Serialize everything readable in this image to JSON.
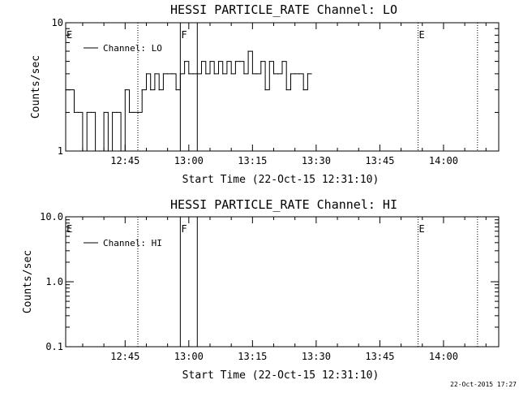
{
  "footer_timestamp": "22-Oct-2015 17:27",
  "colors": {
    "background": "#ffffff",
    "foreground": "#000000"
  },
  "chart_data": [
    {
      "type": "line",
      "title": "HESSI PARTICLE_RATE Channel: LO",
      "xlabel": "Start Time (22-Oct-15 12:31:10)",
      "ylabel": "Counts/sec",
      "yscale": "log",
      "ylim": [
        1,
        10
      ],
      "xlim": [
        "12:31",
        "14:13"
      ],
      "x_tick_labels": [
        "12:45",
        "13:00",
        "13:15",
        "13:30",
        "13:45",
        "14:00"
      ],
      "y_tick_labels": [
        "1",
        "10"
      ],
      "legend": {
        "position": "top-left",
        "entries": [
          "Channel: LO"
        ]
      },
      "grid": false,
      "markers": [
        {
          "label": "E",
          "time": "12:31",
          "style": "none"
        },
        {
          "time": "12:48",
          "style": "dotted"
        },
        {
          "label": "F",
          "time": "12:58",
          "style": "solid"
        },
        {
          "time": "13:02",
          "style": "solid"
        },
        {
          "label": "E",
          "time": "13:54",
          "style": "dotted"
        },
        {
          "time": "14:08",
          "style": "dotted"
        }
      ],
      "series": [
        {
          "name": "Channel: LO",
          "x": [
            "12:31",
            "12:32",
            "12:33",
            "12:34",
            "12:35",
            "12:36",
            "12:37",
            "12:38",
            "12:39",
            "12:40",
            "12:41",
            "12:42",
            "12:43",
            "12:44",
            "12:45",
            "12:46",
            "12:47",
            "12:48",
            "12:49",
            "12:50",
            "12:51",
            "12:52",
            "12:53",
            "12:54",
            "12:55",
            "12:56",
            "12:57",
            "12:58",
            "12:59",
            "13:00",
            "13:01",
            "13:02",
            "13:03",
            "13:04",
            "13:05",
            "13:06",
            "13:07",
            "13:08",
            "13:09",
            "13:10",
            "13:11",
            "13:12",
            "13:13",
            "13:14",
            "13:15",
            "13:16",
            "13:17",
            "13:18",
            "13:19",
            "13:20",
            "13:21",
            "13:22",
            "13:23",
            "13:24",
            "13:25",
            "13:26",
            "13:27",
            "13:28"
          ],
          "y": [
            3,
            3,
            2,
            2,
            1,
            2,
            2,
            1,
            1,
            2,
            1,
            2,
            2,
            1,
            3,
            2,
            2,
            2,
            3,
            4,
            3,
            4,
            3,
            4,
            4,
            4,
            3,
            4,
            5,
            4,
            4,
            4,
            5,
            4,
            5,
            4,
            5,
            4,
            5,
            4,
            5,
            5,
            4,
            6,
            4,
            4,
            5,
            3,
            5,
            4,
            4,
            5,
            3,
            4,
            4,
            4,
            3,
            4
          ]
        }
      ]
    },
    {
      "type": "line",
      "title": "HESSI PARTICLE_RATE Channel: HI",
      "xlabel": "Start Time (22-Oct-15 12:31:10)",
      "ylabel": "Counts/sec",
      "yscale": "log",
      "ylim": [
        0.1,
        10
      ],
      "xlim": [
        "12:31",
        "14:13"
      ],
      "x_tick_labels": [
        "12:45",
        "13:00",
        "13:15",
        "13:30",
        "13:45",
        "14:00"
      ],
      "y_tick_labels": [
        "0.1",
        "1.0",
        "10.0"
      ],
      "legend": {
        "position": "top-left",
        "entries": [
          "Channel: HI"
        ]
      },
      "grid": false,
      "markers": [
        {
          "label": "E",
          "time": "12:31",
          "style": "none"
        },
        {
          "time": "12:48",
          "style": "dotted"
        },
        {
          "label": "F",
          "time": "12:58",
          "style": "solid"
        },
        {
          "time": "13:02",
          "style": "solid"
        },
        {
          "label": "E",
          "time": "13:54",
          "style": "dotted"
        },
        {
          "time": "14:08",
          "style": "dotted"
        }
      ],
      "series": [
        {
          "name": "Channel: HI",
          "x": [],
          "y": []
        }
      ]
    }
  ]
}
